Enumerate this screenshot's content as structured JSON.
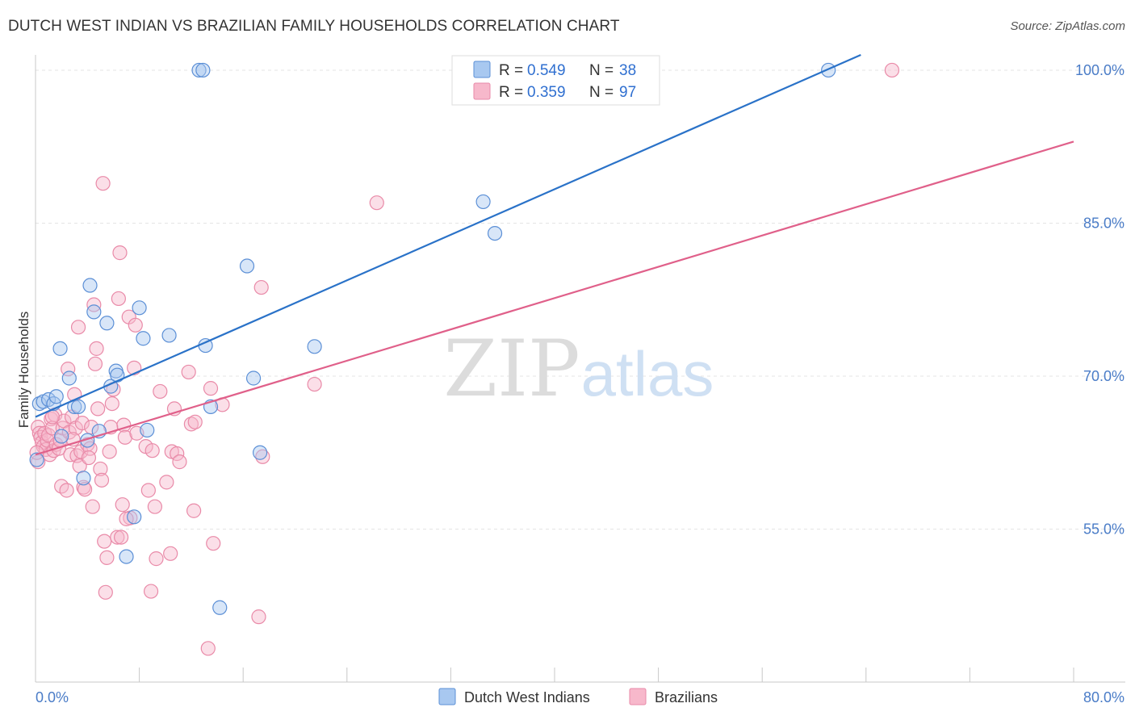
{
  "header": {
    "title": "DUTCH WEST INDIAN VS BRAZILIAN FAMILY HOUSEHOLDS CORRELATION CHART",
    "source": "Source: ZipAtlas.com"
  },
  "watermark": {
    "zip": "ZIP",
    "atlas": "atlas"
  },
  "chart_data": {
    "type": "scatter",
    "title": "DUTCH WEST INDIAN VS BRAZILIAN FAMILY HOUSEHOLDS CORRELATION CHART",
    "xlabel": "",
    "ylabel": "Family Households",
    "xlim": [
      0,
      80
    ],
    "ylim": [
      40,
      101.5
    ],
    "x_tick_labels": [
      "0.0%",
      "80.0%"
    ],
    "y_ticks": [
      55,
      70,
      85,
      100
    ],
    "y_tick_labels": [
      "55.0%",
      "70.0%",
      "85.0%",
      "100.0%"
    ],
    "grid": true,
    "legend_position": "top-center",
    "stats": [
      {
        "r_label": "R =",
        "r_value": "0.549",
        "n_label": "N =",
        "n_value": "38"
      },
      {
        "r_label": "R =",
        "r_value": "0.359",
        "n_label": "N =",
        "n_value": "97"
      }
    ],
    "colors": {
      "blue_fill": "#a8c8f0",
      "blue_stroke": "#5b8fd6",
      "blue_line": "#2a72c8",
      "pink_fill": "#f7b8cb",
      "pink_stroke": "#e98aa8",
      "pink_line": "#e0608a",
      "value_text": "#2f6fd0",
      "label_text": "#333333"
    },
    "series": [
      {
        "name": "Dutch West Indians",
        "trend": [
          [
            0,
            66.0
          ],
          [
            63.6,
            101.5
          ]
        ],
        "points": [
          [
            0.1,
            61.8
          ],
          [
            0.3,
            67.3
          ],
          [
            0.6,
            67.5
          ],
          [
            1.0,
            67.7
          ],
          [
            1.4,
            67.3
          ],
          [
            1.6,
            68.0
          ],
          [
            1.9,
            72.7
          ],
          [
            2.0,
            64.1
          ],
          [
            2.6,
            69.8
          ],
          [
            3.0,
            67.0
          ],
          [
            3.3,
            67.0
          ],
          [
            3.7,
            60.0
          ],
          [
            4.0,
            63.7
          ],
          [
            4.2,
            78.9
          ],
          [
            4.5,
            76.3
          ],
          [
            4.9,
            64.6
          ],
          [
            5.5,
            75.2
          ],
          [
            5.8,
            69.0
          ],
          [
            6.2,
            70.5
          ],
          [
            6.3,
            70.1
          ],
          [
            7.0,
            52.3
          ],
          [
            7.6,
            56.2
          ],
          [
            8.0,
            76.7
          ],
          [
            8.3,
            73.7
          ],
          [
            8.6,
            64.7
          ],
          [
            10.3,
            74.0
          ],
          [
            12.6,
            100.0
          ],
          [
            12.9,
            100.0
          ],
          [
            13.1,
            73.0
          ],
          [
            13.5,
            67.0
          ],
          [
            14.2,
            47.3
          ],
          [
            16.3,
            80.8
          ],
          [
            16.8,
            69.8
          ],
          [
            17.3,
            62.5
          ],
          [
            21.5,
            72.9
          ],
          [
            34.5,
            87.1
          ],
          [
            35.4,
            84.0
          ],
          [
            61.1,
            100.0
          ]
        ]
      },
      {
        "name": "Brazilians",
        "trend": [
          [
            0,
            62.3
          ],
          [
            80,
            93.0
          ]
        ],
        "points": [
          [
            0.2,
            65.0
          ],
          [
            0.3,
            64.4
          ],
          [
            0.4,
            64.0
          ],
          [
            0.5,
            63.5
          ],
          [
            0.6,
            63.1
          ],
          [
            0.7,
            64.4
          ],
          [
            0.8,
            62.8
          ],
          [
            0.9,
            63.7
          ],
          [
            1.0,
            64.2
          ],
          [
            1.1,
            62.3
          ],
          [
            1.2,
            65.8
          ],
          [
            1.3,
            64.9
          ],
          [
            1.4,
            62.7
          ],
          [
            1.5,
            66.2
          ],
          [
            1.6,
            63.3
          ],
          [
            1.8,
            62.9
          ],
          [
            1.9,
            63.7
          ],
          [
            2.0,
            59.2
          ],
          [
            2.1,
            64.9
          ],
          [
            2.2,
            65.6
          ],
          [
            2.4,
            58.8
          ],
          [
            2.5,
            70.7
          ],
          [
            2.6,
            64.5
          ],
          [
            2.7,
            62.3
          ],
          [
            2.8,
            66.0
          ],
          [
            3.0,
            68.2
          ],
          [
            3.1,
            64.9
          ],
          [
            3.2,
            62.2
          ],
          [
            3.3,
            74.8
          ],
          [
            3.4,
            61.2
          ],
          [
            3.5,
            62.6
          ],
          [
            3.6,
            65.4
          ],
          [
            3.7,
            59.1
          ],
          [
            3.8,
            58.9
          ],
          [
            4.0,
            63.3
          ],
          [
            4.2,
            62.9
          ],
          [
            4.3,
            65.0
          ],
          [
            4.4,
            57.2
          ],
          [
            4.5,
            77.0
          ],
          [
            4.6,
            71.2
          ],
          [
            4.7,
            72.7
          ],
          [
            4.8,
            66.8
          ],
          [
            5.0,
            60.9
          ],
          [
            5.1,
            59.8
          ],
          [
            5.2,
            88.9
          ],
          [
            5.3,
            53.8
          ],
          [
            5.4,
            48.8
          ],
          [
            5.5,
            52.2
          ],
          [
            5.7,
            62.6
          ],
          [
            5.9,
            67.3
          ],
          [
            6.0,
            68.7
          ],
          [
            6.3,
            54.2
          ],
          [
            6.4,
            77.6
          ],
          [
            6.5,
            82.1
          ],
          [
            6.6,
            54.2
          ],
          [
            6.7,
            57.4
          ],
          [
            6.8,
            65.2
          ],
          [
            6.9,
            64.0
          ],
          [
            7.2,
            75.8
          ],
          [
            7.3,
            56.1
          ],
          [
            7.6,
            70.8
          ],
          [
            7.7,
            75.0
          ],
          [
            7.8,
            64.4
          ],
          [
            8.5,
            63.1
          ],
          [
            8.7,
            58.8
          ],
          [
            8.9,
            48.9
          ],
          [
            9.0,
            62.7
          ],
          [
            9.2,
            57.2
          ],
          [
            9.3,
            52.1
          ],
          [
            9.6,
            68.5
          ],
          [
            10.1,
            59.6
          ],
          [
            10.4,
            52.6
          ],
          [
            10.5,
            62.6
          ],
          [
            10.7,
            66.8
          ],
          [
            10.9,
            62.4
          ],
          [
            11.1,
            61.6
          ],
          [
            11.8,
            70.4
          ],
          [
            12.0,
            65.3
          ],
          [
            12.2,
            56.8
          ],
          [
            12.3,
            65.5
          ],
          [
            13.3,
            43.3
          ],
          [
            13.5,
            68.8
          ],
          [
            13.7,
            53.6
          ],
          [
            14.4,
            67.2
          ],
          [
            17.2,
            46.4
          ],
          [
            17.4,
            78.7
          ],
          [
            17.5,
            62.1
          ],
          [
            21.5,
            69.2
          ],
          [
            26.3,
            87.0
          ],
          [
            66.0,
            100.0
          ],
          [
            0.2,
            61.6
          ],
          [
            0.1,
            62.5
          ],
          [
            1.3,
            66.0
          ],
          [
            2.9,
            63.8
          ],
          [
            4.1,
            62.0
          ],
          [
            5.8,
            65.0
          ],
          [
            7.0,
            56.0
          ]
        ]
      }
    ]
  }
}
